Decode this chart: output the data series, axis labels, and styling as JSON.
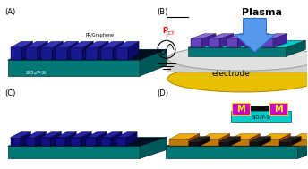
{
  "bg_color": "#ffffff",
  "panel_labels": [
    "(A)",
    "(B)",
    "(C)",
    "(D)"
  ],
  "sub_top": "#00c8c8",
  "sub_side": "#007878",
  "sub_right": "#005858",
  "sub_bottom": "#003030",
  "bar_top_A": "#3333bb",
  "bar_side_A": "#1a1a90",
  "bar_right_A": "#0d0d70",
  "bar_top_B": "#8866dd",
  "bar_side_B": "#6644bb",
  "bar_right_B": "#442299",
  "bar_top_C": "#2222aa",
  "bar_side_C": "#111188",
  "bar_right_C": "#080860",
  "gold_top": "#f0a800",
  "gold_side": "#c07800",
  "gold_right": "#904000",
  "dark_top": "#222222",
  "dark_side": "#111111",
  "dark_right": "#080808",
  "elec_gray": "#c8c8c8",
  "elec_gray2": "#a0a0a0",
  "elec_yellow": "#e8c000",
  "plasma_color": "#5599ee",
  "plasma_edge": "#3366cc",
  "metal_fill": "#cc00cc",
  "metal_edge": "#880088",
  "inset_sub": "#00cccc",
  "plasma_text": "Plasma",
  "electrode_text": "electrode",
  "sio2_text": "SiO₂/P-Si",
  "pr_graphene_text": "PR/Graphene",
  "M_label": "M"
}
